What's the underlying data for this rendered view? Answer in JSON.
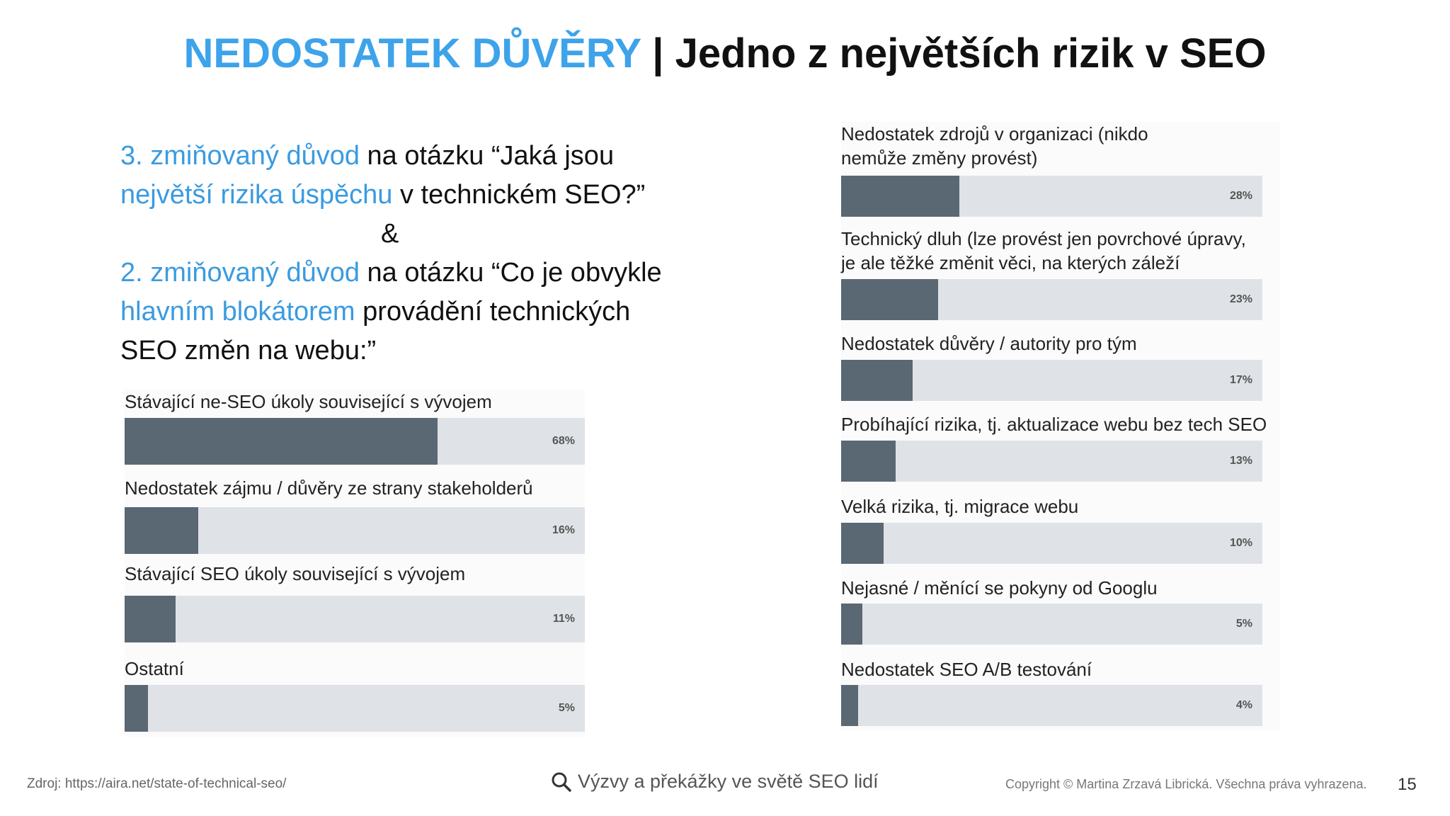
{
  "title": {
    "accent": "NEDOSTATEK DŮVĚRY",
    "separator": " | ",
    "rest": "Jedno z největších rizik v SEO"
  },
  "intro": {
    "p1_hl1": "3. zmiňovaný důvod",
    "p1_t1": " na otázku “Jaká jsou ",
    "p1_hl2": "největší rizika úspěchu",
    "p1_t2": " v technickém SEO?”",
    "amp": "&",
    "p2_hl1": "2. zmiňovaný důvod",
    "p2_t1": " na otázku “Co je obvykle ",
    "p2_hl2": "hlavním blokátorem",
    "p2_t2": " provádění technických SEO změn na webu:”"
  },
  "chart_data": [
    {
      "type": "bar",
      "categories": [
        "Stávající ne-SEO úkoly související s vývojem",
        "Nedostatek zájmu / důvěry ze strany stakeholderů",
        "Stávající SEO úkoly související s vývojem",
        "Ostatní"
      ],
      "values": [
        68,
        16,
        11,
        5
      ],
      "value_labels": [
        "68%",
        "16%",
        "11%",
        "5%"
      ],
      "xlim": [
        0,
        100
      ]
    },
    {
      "type": "bar",
      "categories": [
        "Nedostatek zdrojů v organizaci (nikdo\nnemůže změny provést)",
        "Technický dluh (lze provést jen povrchové úpravy,\nje ale těžké změnit věci, na kterých záleží",
        "Nedostatek důvěry / autority pro tým",
        "Probíhající rizika, tj. aktualizace webu bez tech SEO",
        "Velká rizika, tj. migrace webu",
        "Nejasné / měnící se pokyny od Googlu",
        "Nedostatek SEO A/B testování"
      ],
      "values": [
        28,
        23,
        17,
        13,
        10,
        5,
        4
      ],
      "value_labels": [
        "28%",
        "23%",
        "17%",
        "13%",
        "10%",
        "5%",
        "4%"
      ],
      "xlim": [
        0,
        100
      ]
    }
  ],
  "colors": {
    "accent": "#3da3ea",
    "bar_fill": "#5a6874",
    "bar_track": "#dfe2e6"
  },
  "footer": {
    "source": "Zdroj: https://aira.net/state-of-technical-seo/",
    "search_icon": "search-icon",
    "center": "Výzvy a překážky ve světě SEO lidí",
    "copyright": "Copyright © Martina Zrzavá Librická. Všechna práva vyhrazena.",
    "page": "15"
  }
}
